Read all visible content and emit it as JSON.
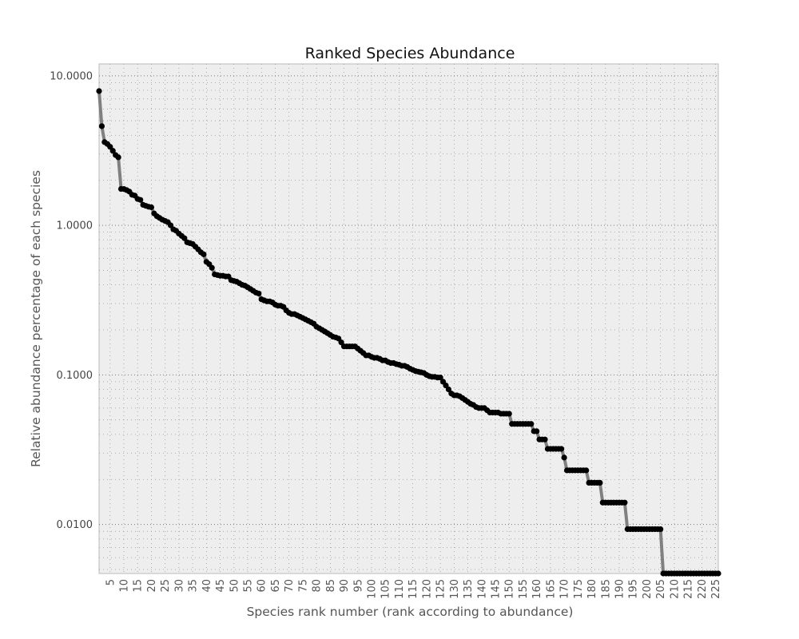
{
  "chart_data": {
    "type": "line",
    "title": "Ranked Species Abundance",
    "xlabel": "Species rank number (rank according to abundance)",
    "ylabel": "Relative abundance percentage of each species",
    "y_scale": "log",
    "xlim": [
      1,
      226
    ],
    "ylim": [
      0.0047,
      12
    ],
    "x_ticks": [
      5,
      10,
      15,
      20,
      25,
      30,
      35,
      40,
      45,
      50,
      55,
      60,
      65,
      70,
      75,
      80,
      85,
      90,
      95,
      100,
      105,
      110,
      115,
      120,
      125,
      130,
      135,
      140,
      145,
      150,
      155,
      160,
      165,
      170,
      175,
      180,
      185,
      190,
      195,
      200,
      205,
      210,
      215,
      220,
      225
    ],
    "y_ticks": [
      0.01,
      0.1,
      1,
      10
    ],
    "y_tick_labels": [
      "0.0100",
      "0.1000",
      "1.0000",
      "10.0000"
    ],
    "grid": true,
    "colors": {
      "background": "#eeeeee",
      "line": "#808080",
      "marker": "#000000",
      "grid": "#999999"
    },
    "series": [
      {
        "points": [
          [
            1,
            7.9
          ],
          [
            2,
            4.6
          ],
          [
            3,
            3.6
          ],
          [
            4,
            3.5
          ],
          [
            5,
            3.35
          ],
          [
            6,
            3.15
          ],
          [
            7,
            2.95
          ],
          [
            8,
            2.85
          ],
          [
            9,
            1.75
          ],
          [
            10,
            1.75
          ],
          [
            11,
            1.72
          ],
          [
            12,
            1.68
          ],
          [
            13,
            1.6
          ],
          [
            14,
            1.58
          ],
          [
            15,
            1.5
          ],
          [
            16,
            1.48
          ],
          [
            17,
            1.37
          ],
          [
            18,
            1.35
          ],
          [
            19,
            1.33
          ],
          [
            20,
            1.32
          ],
          [
            21,
            1.2
          ],
          [
            22,
            1.15
          ],
          [
            23,
            1.12
          ],
          [
            24,
            1.09
          ],
          [
            25,
            1.07
          ],
          [
            26,
            1.05
          ],
          [
            27,
            1.0
          ],
          [
            28,
            0.94
          ],
          [
            29,
            0.92
          ],
          [
            30,
            0.88
          ],
          [
            31,
            0.85
          ],
          [
            32,
            0.82
          ],
          [
            33,
            0.77
          ],
          [
            34,
            0.76
          ],
          [
            35,
            0.75
          ],
          [
            36,
            0.72
          ],
          [
            37,
            0.69
          ],
          [
            38,
            0.66
          ],
          [
            39,
            0.64
          ],
          [
            40,
            0.57
          ],
          [
            41,
            0.55
          ],
          [
            42,
            0.52
          ],
          [
            43,
            0.47
          ],
          [
            44,
            0.465
          ],
          [
            45,
            0.46
          ],
          [
            46,
            0.46
          ],
          [
            47,
            0.455
          ],
          [
            48,
            0.455
          ],
          [
            49,
            0.43
          ],
          [
            50,
            0.425
          ],
          [
            51,
            0.42
          ],
          [
            52,
            0.41
          ],
          [
            53,
            0.4
          ],
          [
            54,
            0.395
          ],
          [
            55,
            0.385
          ],
          [
            56,
            0.375
          ],
          [
            57,
            0.365
          ],
          [
            58,
            0.355
          ],
          [
            59,
            0.35
          ],
          [
            60,
            0.32
          ],
          [
            61,
            0.315
          ],
          [
            62,
            0.31
          ],
          [
            63,
            0.31
          ],
          [
            64,
            0.305
          ],
          [
            65,
            0.295
          ],
          [
            66,
            0.29
          ],
          [
            67,
            0.29
          ],
          [
            68,
            0.285
          ],
          [
            69,
            0.27
          ],
          [
            70,
            0.26
          ],
          [
            71,
            0.255
          ],
          [
            72,
            0.255
          ],
          [
            73,
            0.25
          ],
          [
            74,
            0.245
          ],
          [
            75,
            0.24
          ],
          [
            76,
            0.235
          ],
          [
            77,
            0.23
          ],
          [
            78,
            0.225
          ],
          [
            79,
            0.22
          ],
          [
            80,
            0.21
          ],
          [
            81,
            0.205
          ],
          [
            82,
            0.2
          ],
          [
            83,
            0.195
          ],
          [
            84,
            0.19
          ],
          [
            85,
            0.185
          ],
          [
            86,
            0.18
          ],
          [
            87,
            0.178
          ],
          [
            88,
            0.175
          ],
          [
            89,
            0.165
          ],
          [
            90,
            0.155
          ],
          [
            91,
            0.155
          ],
          [
            92,
            0.155
          ],
          [
            93,
            0.155
          ],
          [
            94,
            0.155
          ],
          [
            95,
            0.15
          ],
          [
            96,
            0.145
          ],
          [
            97,
            0.14
          ],
          [
            98,
            0.135
          ],
          [
            99,
            0.135
          ],
          [
            100,
            0.132
          ],
          [
            101,
            0.13
          ],
          [
            102,
            0.13
          ],
          [
            103,
            0.128
          ],
          [
            104,
            0.125
          ],
          [
            105,
            0.125
          ],
          [
            106,
            0.122
          ],
          [
            107,
            0.12
          ],
          [
            108,
            0.12
          ],
          [
            109,
            0.118
          ],
          [
            110,
            0.117
          ],
          [
            111,
            0.115
          ],
          [
            112,
            0.115
          ],
          [
            113,
            0.113
          ],
          [
            114,
            0.11
          ],
          [
            115,
            0.108
          ],
          [
            116,
            0.106
          ],
          [
            117,
            0.105
          ],
          [
            118,
            0.104
          ],
          [
            119,
            0.103
          ],
          [
            120,
            0.1
          ],
          [
            121,
            0.098
          ],
          [
            122,
            0.097
          ],
          [
            123,
            0.097
          ],
          [
            124,
            0.096
          ],
          [
            125,
            0.096
          ],
          [
            126,
            0.09
          ],
          [
            127,
            0.085
          ],
          [
            128,
            0.08
          ],
          [
            129,
            0.075
          ],
          [
            130,
            0.073
          ],
          [
            131,
            0.073
          ],
          [
            132,
            0.072
          ],
          [
            133,
            0.07
          ],
          [
            134,
            0.068
          ],
          [
            135,
            0.066
          ],
          [
            136,
            0.064
          ],
          [
            137,
            0.063
          ],
          [
            138,
            0.061
          ],
          [
            139,
            0.06
          ],
          [
            140,
            0.06
          ],
          [
            141,
            0.06
          ],
          [
            142,
            0.058
          ],
          [
            143,
            0.056
          ],
          [
            144,
            0.056
          ],
          [
            145,
            0.056
          ],
          [
            146,
            0.056
          ],
          [
            147,
            0.055
          ],
          [
            148,
            0.055
          ],
          [
            149,
            0.055
          ],
          [
            150,
            0.055
          ],
          [
            151,
            0.047
          ],
          [
            152,
            0.047
          ],
          [
            153,
            0.047
          ],
          [
            154,
            0.047
          ],
          [
            155,
            0.047
          ],
          [
            156,
            0.047
          ],
          [
            157,
            0.047
          ],
          [
            158,
            0.047
          ],
          [
            159,
            0.042
          ],
          [
            160,
            0.042
          ],
          [
            161,
            0.037
          ],
          [
            162,
            0.037
          ],
          [
            163,
            0.037
          ],
          [
            164,
            0.032
          ],
          [
            165,
            0.032
          ],
          [
            166,
            0.032
          ],
          [
            167,
            0.032
          ],
          [
            168,
            0.032
          ],
          [
            169,
            0.032
          ],
          [
            170,
            0.028
          ],
          [
            171,
            0.023
          ],
          [
            172,
            0.023
          ],
          [
            173,
            0.023
          ],
          [
            174,
            0.023
          ],
          [
            175,
            0.023
          ],
          [
            176,
            0.023
          ],
          [
            177,
            0.023
          ],
          [
            178,
            0.023
          ],
          [
            179,
            0.019
          ],
          [
            180,
            0.019
          ],
          [
            181,
            0.019
          ],
          [
            182,
            0.019
          ],
          [
            183,
            0.019
          ],
          [
            184,
            0.014
          ],
          [
            185,
            0.014
          ],
          [
            186,
            0.014
          ],
          [
            187,
            0.014
          ],
          [
            188,
            0.014
          ],
          [
            189,
            0.014
          ],
          [
            190,
            0.014
          ],
          [
            191,
            0.014
          ],
          [
            192,
            0.014
          ],
          [
            193,
            0.0093
          ],
          [
            194,
            0.0093
          ],
          [
            195,
            0.0093
          ],
          [
            196,
            0.0093
          ],
          [
            197,
            0.0093
          ],
          [
            198,
            0.0093
          ],
          [
            199,
            0.0093
          ],
          [
            200,
            0.0093
          ],
          [
            201,
            0.0093
          ],
          [
            202,
            0.0093
          ],
          [
            203,
            0.0093
          ],
          [
            204,
            0.0093
          ],
          [
            205,
            0.0093
          ],
          [
            206,
            0.0047
          ],
          [
            207,
            0.0047
          ],
          [
            208,
            0.0047
          ],
          [
            209,
            0.0047
          ],
          [
            210,
            0.0047
          ],
          [
            211,
            0.0047
          ],
          [
            212,
            0.0047
          ],
          [
            213,
            0.0047
          ],
          [
            214,
            0.0047
          ],
          [
            215,
            0.0047
          ],
          [
            216,
            0.0047
          ],
          [
            217,
            0.0047
          ],
          [
            218,
            0.0047
          ],
          [
            219,
            0.0047
          ],
          [
            220,
            0.0047
          ],
          [
            221,
            0.0047
          ],
          [
            222,
            0.0047
          ],
          [
            223,
            0.0047
          ],
          [
            224,
            0.0047
          ],
          [
            225,
            0.0047
          ],
          [
            226,
            0.0047
          ]
        ]
      }
    ]
  }
}
